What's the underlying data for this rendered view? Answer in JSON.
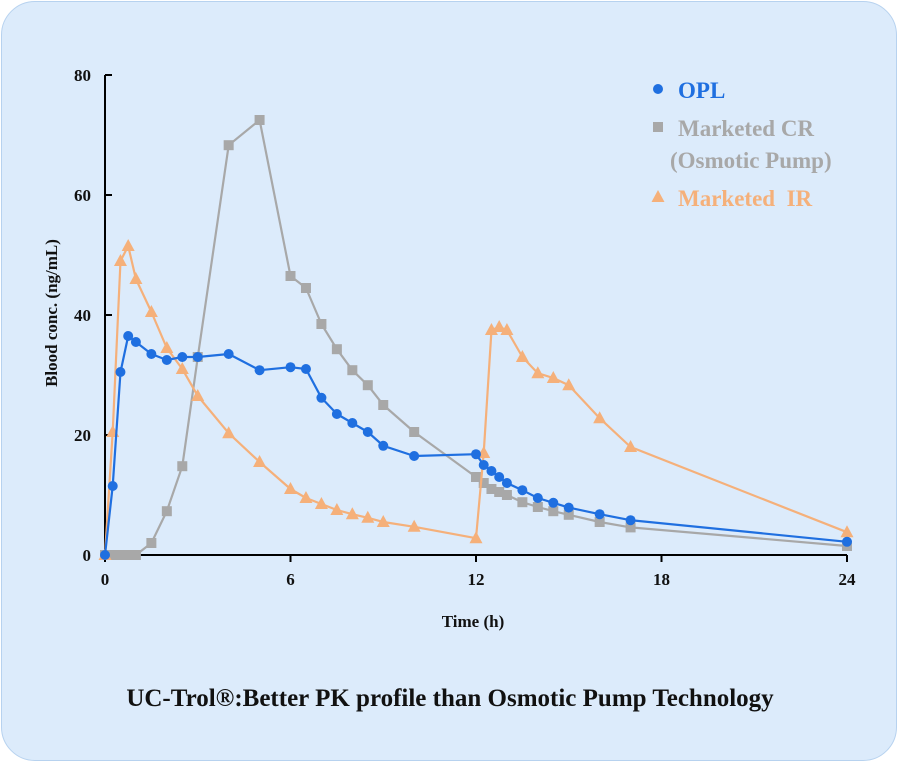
{
  "caption": "UC-Trol®:Better PK profile than Osmotic Pump Technology",
  "chart_data": {
    "type": "line",
    "xlabel": "Time (h)",
    "ylabel": "Blood conc. (ng/mL)",
    "xlim": [
      0,
      24
    ],
    "ylim": [
      0,
      80
    ],
    "xticks": [
      0,
      6,
      12,
      18,
      24
    ],
    "yticks": [
      0,
      20,
      40,
      60,
      80
    ],
    "grid": false,
    "legend_position": "top-right",
    "series": [
      {
        "name": "OPL",
        "marker": "circle",
        "color": "#1f6fe0",
        "points": [
          [
            0,
            0
          ],
          [
            0.25,
            11.5
          ],
          [
            0.5,
            30.5
          ],
          [
            0.75,
            36.5
          ],
          [
            1,
            35.5
          ],
          [
            1.5,
            33.5
          ],
          [
            2,
            32.5
          ],
          [
            2.5,
            33
          ],
          [
            3,
            33
          ],
          [
            4,
            33.5
          ],
          [
            5,
            30.8
          ],
          [
            6,
            31.3
          ],
          [
            6.5,
            31
          ],
          [
            7,
            26.2
          ],
          [
            7.5,
            23.5
          ],
          [
            8,
            22
          ],
          [
            8.5,
            20.5
          ],
          [
            9,
            18.2
          ],
          [
            10,
            16.5
          ],
          [
            12,
            16.8
          ],
          [
            12.25,
            15
          ],
          [
            12.5,
            14
          ],
          [
            12.75,
            13
          ],
          [
            13,
            12
          ],
          [
            13.5,
            10.8
          ],
          [
            14,
            9.5
          ],
          [
            14.5,
            8.7
          ],
          [
            15,
            7.9
          ],
          [
            16,
            6.8
          ],
          [
            17,
            5.8
          ],
          [
            24,
            2.2
          ]
        ]
      },
      {
        "name": "Marketed CR\n(Osmotic Pump)",
        "legend_lines": [
          "Marketed CR",
          "(Osmotic Pump)"
        ],
        "marker": "square",
        "color": "#a8a8a8",
        "points": [
          [
            0,
            0
          ],
          [
            0.25,
            0
          ],
          [
            0.5,
            0
          ],
          [
            0.75,
            0
          ],
          [
            1,
            0
          ],
          [
            1.5,
            2
          ],
          [
            2,
            7.3
          ],
          [
            2.5,
            14.8
          ],
          [
            3,
            33
          ],
          [
            4,
            68.3
          ],
          [
            5,
            72.5
          ],
          [
            6,
            46.5
          ],
          [
            6.5,
            44.5
          ],
          [
            7,
            38.5
          ],
          [
            7.5,
            34.3
          ],
          [
            8,
            30.8
          ],
          [
            8.5,
            28.3
          ],
          [
            9,
            25
          ],
          [
            10,
            20.5
          ],
          [
            12,
            13
          ],
          [
            12.25,
            12
          ],
          [
            12.5,
            11
          ],
          [
            12.75,
            10.5
          ],
          [
            13,
            10
          ],
          [
            13.5,
            8.8
          ],
          [
            14,
            8
          ],
          [
            14.5,
            7.3
          ],
          [
            15,
            6.7
          ],
          [
            16,
            5.5
          ],
          [
            17,
            4.6
          ],
          [
            24,
            1.5
          ]
        ]
      },
      {
        "name": "Marketed  IR",
        "marker": "triangle",
        "color": "#f5b07a",
        "points": [
          [
            0,
            0
          ],
          [
            0.25,
            20.5
          ],
          [
            0.5,
            49
          ],
          [
            0.75,
            51.5
          ],
          [
            1,
            46
          ],
          [
            1.5,
            40.5
          ],
          [
            2,
            34.5
          ],
          [
            2.5,
            31
          ],
          [
            3,
            26.5
          ],
          [
            4,
            20.3
          ],
          [
            5,
            15.5
          ],
          [
            6,
            11
          ],
          [
            6.5,
            9.5
          ],
          [
            7,
            8.5
          ],
          [
            7.5,
            7.5
          ],
          [
            8,
            6.8
          ],
          [
            8.5,
            6.2
          ],
          [
            9,
            5.5
          ],
          [
            10,
            4.7
          ],
          [
            12,
            2.8
          ],
          [
            12.25,
            17
          ],
          [
            12.5,
            37.5
          ],
          [
            12.75,
            38
          ],
          [
            13,
            37.5
          ],
          [
            13.5,
            33
          ],
          [
            14,
            30.3
          ],
          [
            14.5,
            29.5
          ],
          [
            15,
            28.3
          ],
          [
            16,
            22.8
          ],
          [
            17,
            18
          ],
          [
            24,
            3.8
          ]
        ]
      }
    ]
  }
}
